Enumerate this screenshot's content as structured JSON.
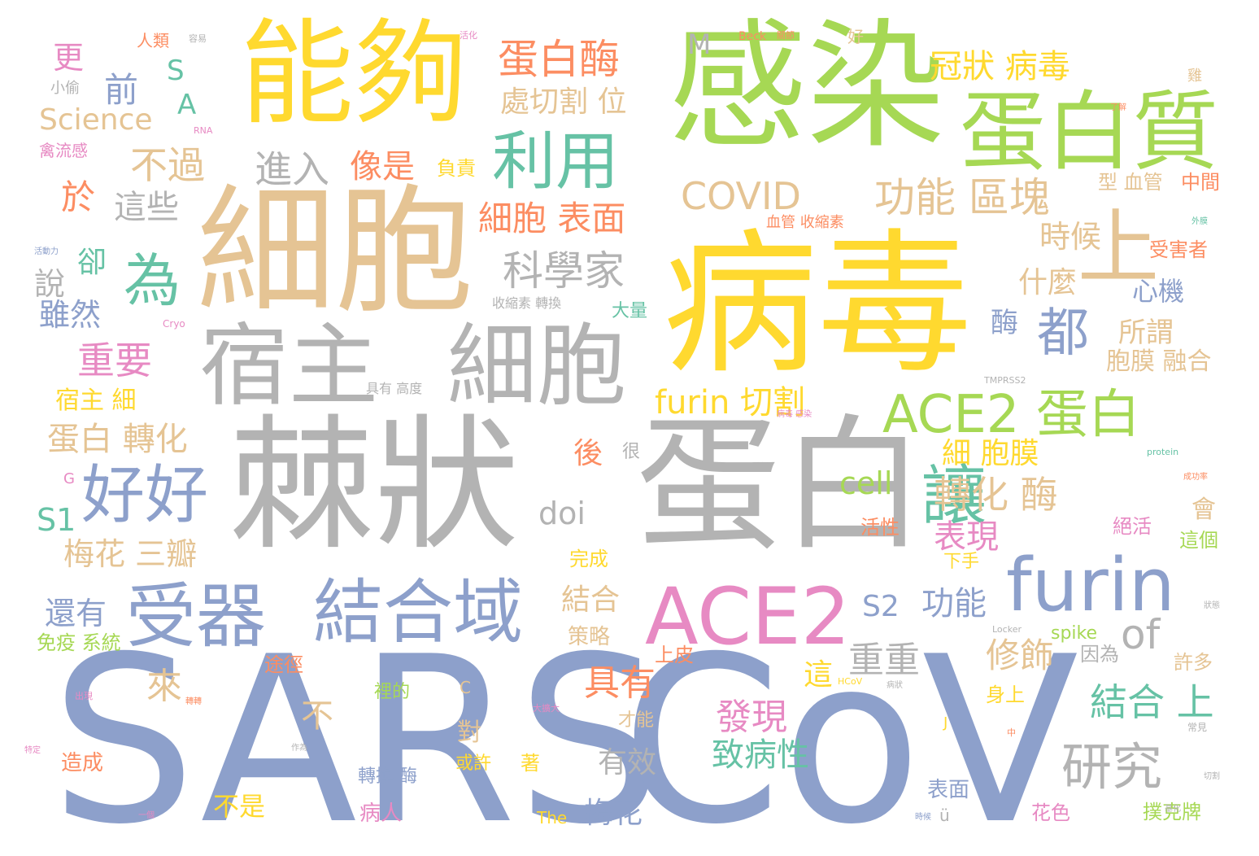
{
  "palette": {
    "blue": "#8DA0CB",
    "gray": "#B3B3B3",
    "gold": "#FFD92F",
    "green": "#A6D854",
    "tan": "#E5C494",
    "orange": "#FC8D62",
    "pink": "#E78AC3",
    "teal": "#66C2A5"
  },
  "words": [
    {
      "text": "SARS",
      "color": "blue"
    },
    {
      "text": "CoV",
      "color": "blue"
    },
    {
      "text": "棘狀",
      "color": "gray"
    },
    {
      "text": "蛋白",
      "color": "gray"
    },
    {
      "text": "病毒",
      "color": "gold"
    },
    {
      "text": "細胞",
      "color": "tan"
    },
    {
      "text": "感染",
      "color": "green"
    },
    {
      "text": "能夠",
      "color": "gold"
    },
    {
      "text": "宿主",
      "color": "gray"
    },
    {
      "text": "細胞",
      "color": "gray"
    },
    {
      "text": "蛋白質",
      "color": "green"
    },
    {
      "text": "ACE2",
      "color": "pink"
    },
    {
      "text": "furin",
      "color": "blue"
    },
    {
      "text": "結合域",
      "color": "blue"
    },
    {
      "text": "受器",
      "color": "blue"
    },
    {
      "text": "好好",
      "color": "blue"
    },
    {
      "text": "ACE2 蛋白",
      "color": "green"
    },
    {
      "text": "讓",
      "color": "teal"
    },
    {
      "text": "上",
      "color": "tan"
    },
    {
      "text": "都",
      "color": "blue"
    },
    {
      "text": "利用",
      "color": "teal"
    },
    {
      "text": "為",
      "color": "teal"
    },
    {
      "text": "研究",
      "color": "gray"
    },
    {
      "text": "冠狀 病毒",
      "color": "gold"
    },
    {
      "text": "蛋白酶",
      "color": "orange"
    },
    {
      "text": "COVID",
      "color": "tan"
    },
    {
      "text": "功能 區塊",
      "color": "tan"
    },
    {
      "text": "科學家",
      "color": "gray"
    },
    {
      "text": "細胞 表面",
      "color": "orange"
    },
    {
      "text": "furin 切割",
      "color": "gold"
    },
    {
      "text": "梅花 三瓣",
      "color": "tan"
    },
    {
      "text": "蛋白 轉化",
      "color": "tan"
    },
    {
      "text": "重要",
      "color": "pink"
    },
    {
      "text": "處切割 位",
      "color": "tan"
    },
    {
      "text": "不過",
      "color": "tan"
    },
    {
      "text": "進入",
      "color": "gray"
    },
    {
      "text": "像是",
      "color": "orange"
    },
    {
      "text": "這些",
      "color": "gray"
    },
    {
      "text": "時候",
      "color": "tan"
    },
    {
      "text": "Science",
      "color": "tan"
    },
    {
      "text": "of",
      "color": "gray"
    },
    {
      "text": "具有",
      "color": "orange"
    },
    {
      "text": "發現",
      "color": "pink"
    },
    {
      "text": "修飾",
      "color": "tan"
    },
    {
      "text": "結合 上",
      "color": "teal"
    },
    {
      "text": "致病性",
      "color": "teal"
    },
    {
      "text": "重重",
      "color": "gray"
    },
    {
      "text": "轉化 酶",
      "color": "tan"
    },
    {
      "text": "細 胞膜",
      "color": "gold"
    },
    {
      "text": "表現",
      "color": "pink"
    },
    {
      "text": "S2",
      "color": "blue"
    },
    {
      "text": "功能",
      "color": "blue"
    },
    {
      "text": "還有",
      "color": "blue"
    },
    {
      "text": "結合",
      "color": "tan"
    },
    {
      "text": "梅花",
      "color": "blue"
    },
    {
      "text": "有效",
      "color": "gray"
    },
    {
      "text": "所謂",
      "color": "tan"
    },
    {
      "text": "什麼",
      "color": "tan"
    },
    {
      "text": "心機",
      "color": "blue"
    },
    {
      "text": "胞膜 融合",
      "color": "tan"
    },
    {
      "text": "宿主 細",
      "color": "gold"
    },
    {
      "text": "cell",
      "color": "green"
    },
    {
      "text": "doi",
      "color": "gray"
    },
    {
      "text": "S1",
      "color": "teal"
    },
    {
      "text": "雖然",
      "color": "blue"
    },
    {
      "text": "說",
      "color": "gray"
    },
    {
      "text": "卻",
      "color": "teal"
    },
    {
      "text": "前",
      "color": "blue"
    },
    {
      "text": "於",
      "color": "orange"
    },
    {
      "text": "更",
      "color": "pink"
    },
    {
      "text": "S",
      "color": "teal"
    },
    {
      "text": "A",
      "color": "teal"
    },
    {
      "text": "M",
      "color": "gray"
    },
    {
      "text": "酶",
      "color": "blue"
    },
    {
      "text": "後",
      "color": "orange"
    },
    {
      "text": "來",
      "color": "tan"
    },
    {
      "text": "不",
      "color": "tan"
    },
    {
      "text": "這",
      "color": "gold"
    },
    {
      "text": "對",
      "color": "tan"
    },
    {
      "text": "不是",
      "color": "gold"
    },
    {
      "text": "造成",
      "color": "orange"
    },
    {
      "text": "免疫 系統",
      "color": "green"
    },
    {
      "text": "途徑",
      "color": "orange"
    },
    {
      "text": "策略",
      "color": "tan"
    },
    {
      "text": "上皮",
      "color": "orange"
    },
    {
      "text": "大量",
      "color": "teal"
    },
    {
      "text": "完成",
      "color": "gold"
    },
    {
      "text": "負責",
      "color": "gold"
    },
    {
      "text": "中間",
      "color": "orange"
    },
    {
      "text": "型 血管",
      "color": "tan"
    },
    {
      "text": "受害者",
      "color": "orange"
    },
    {
      "text": "許多",
      "color": "tan"
    },
    {
      "text": "因為",
      "color": "gray"
    },
    {
      "text": "spike",
      "color": "green"
    },
    {
      "text": "身上",
      "color": "gold"
    },
    {
      "text": "下手",
      "color": "gold"
    },
    {
      "text": "絕活",
      "color": "pink"
    },
    {
      "text": "活性",
      "color": "orange"
    },
    {
      "text": "會",
      "color": "tan"
    },
    {
      "text": "這個",
      "color": "green"
    },
    {
      "text": "撲克牌",
      "color": "green"
    },
    {
      "text": "花色",
      "color": "pink"
    },
    {
      "text": "表面",
      "color": "blue"
    },
    {
      "text": "病人",
      "color": "pink"
    },
    {
      "text": "轉換 酶",
      "color": "blue"
    },
    {
      "text": "或許",
      "color": "gold"
    },
    {
      "text": "著",
      "color": "gold"
    },
    {
      "text": "才能",
      "color": "tan"
    },
    {
      "text": "裡的",
      "color": "green"
    },
    {
      "text": "很",
      "color": "gray"
    },
    {
      "text": "人類",
      "color": "orange"
    },
    {
      "text": "小偷",
      "color": "gray"
    },
    {
      "text": "禽流感",
      "color": "pink"
    },
    {
      "text": "血管 收縮素",
      "color": "orange"
    },
    {
      "text": "收縮素 轉換",
      "color": "gray"
    },
    {
      "text": "具有 高度",
      "color": "gray"
    },
    {
      "text": "The",
      "color": "gold"
    },
    {
      "text": "ü",
      "color": "gray"
    },
    {
      "text": "C",
      "color": "tan"
    },
    {
      "text": "J",
      "color": "gold"
    },
    {
      "text": "G",
      "color": "pink"
    },
    {
      "text": "Beck",
      "color": "orange"
    },
    {
      "text": "好",
      "color": "tan"
    },
    {
      "text": "雞",
      "color": "tan"
    },
    {
      "text": "Cryo",
      "color": "pink"
    },
    {
      "text": "TMPRSS2",
      "color": "gray"
    },
    {
      "text": "protein",
      "color": "teal"
    },
    {
      "text": "Locker",
      "color": "gray"
    },
    {
      "text": "HCoV",
      "color": "gold"
    },
    {
      "text": "RNA",
      "color": "pink"
    },
    {
      "text": "活化",
      "color": "pink"
    },
    {
      "text": "容易",
      "color": "gray"
    },
    {
      "text": "關節",
      "color": "orange"
    },
    {
      "text": "了解",
      "color": "orange"
    },
    {
      "text": "外膜",
      "color": "teal"
    },
    {
      "text": "活動力",
      "color": "blue"
    },
    {
      "text": "病毒 感染",
      "color": "pink"
    },
    {
      "text": "成功率",
      "color": "orange"
    },
    {
      "text": "出現",
      "color": "pink"
    },
    {
      "text": "轉轉",
      "color": "orange"
    },
    {
      "text": "中",
      "color": "orange"
    },
    {
      "text": "常見",
      "color": "gray"
    },
    {
      "text": "作為",
      "color": "gray"
    },
    {
      "text": "一個",
      "color": "pink"
    },
    {
      "text": "特定",
      "color": "pink"
    },
    {
      "text": "時候",
      "color": "blue"
    },
    {
      "text": "狀態",
      "color": "gray"
    },
    {
      "text": "病狀",
      "color": "gray"
    },
    {
      "text": "大擴大",
      "color": "pink"
    },
    {
      "text": "切割",
      "color": "gray"
    },
    {
      "text": "基化",
      "color": "gray"
    }
  ]
}
